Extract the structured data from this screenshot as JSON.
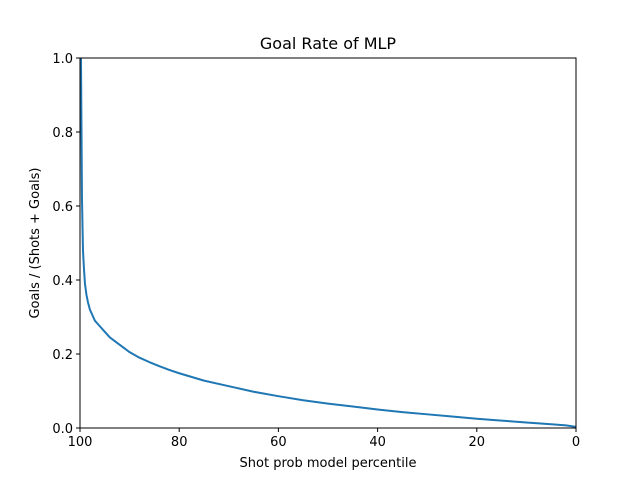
{
  "chart_data": {
    "type": "line",
    "title": "Goal Rate of MLP",
    "xlabel": "Shot prob model percentile",
    "ylabel": "Goals / (Shots + Goals)",
    "xlim": [
      100,
      0
    ],
    "ylim": [
      0.0,
      1.0
    ],
    "x_axis_inverted": true,
    "grid": false,
    "legend": "none",
    "xticks": [
      100,
      80,
      60,
      40,
      20,
      0
    ],
    "xtick_labels": [
      "100",
      "80",
      "60",
      "40",
      "20",
      "0"
    ],
    "yticks": [
      0.0,
      0.2,
      0.4,
      0.6,
      0.8,
      1.0
    ],
    "ytick_labels": [
      "0.0",
      "0.2",
      "0.4",
      "0.6",
      "0.8",
      "1.0"
    ],
    "series": [
      {
        "color": "#1f77b4",
        "x": [
          99.8,
          99.6,
          99.4,
          99.2,
          99.0,
          98.7,
          98.4,
          98.0,
          97.5,
          97.0,
          96.0,
          95.0,
          94.0,
          92.5,
          91.0,
          90.0,
          88.0,
          86.0,
          84.0,
          82.0,
          80.0,
          75.0,
          70.0,
          65.0,
          60.0,
          55.0,
          50.0,
          45.0,
          40.0,
          35.0,
          30.0,
          25.0,
          20.0,
          15.0,
          10.0,
          5.0,
          2.0,
          1.0,
          0.0
        ],
        "y": [
          1.0,
          0.62,
          0.48,
          0.43,
          0.39,
          0.36,
          0.34,
          0.32,
          0.305,
          0.29,
          0.275,
          0.26,
          0.245,
          0.23,
          0.215,
          0.205,
          0.19,
          0.178,
          0.167,
          0.157,
          0.148,
          0.128,
          0.113,
          0.098,
          0.086,
          0.075,
          0.066,
          0.058,
          0.05,
          0.043,
          0.037,
          0.031,
          0.025,
          0.02,
          0.015,
          0.01,
          0.007,
          0.005,
          0.003
        ]
      }
    ]
  }
}
